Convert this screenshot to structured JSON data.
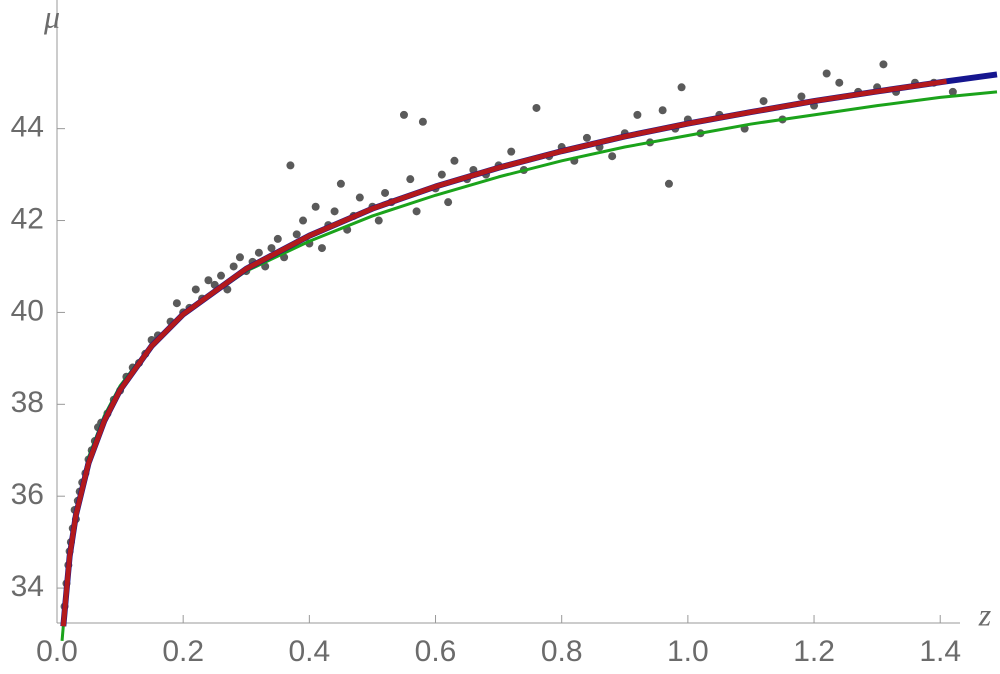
{
  "chart_data": {
    "type": "scatter",
    "x_label": "z",
    "y_label": "μ",
    "xlim": [
      0,
      1.49
    ],
    "ylim": [
      33.24,
      46.8
    ],
    "xticks": [
      {
        "value": 0,
        "label": "0.0"
      },
      0.2,
      0.4,
      0.6,
      0.8,
      {
        "value": 1,
        "label": "1.0"
      },
      1.2,
      1.4
    ],
    "yticks": [
      34,
      36,
      38,
      40,
      42,
      44
    ],
    "series": [
      {
        "type": "scatter",
        "color": "#5a5a5a",
        "x": [
          0.012,
          0.015,
          0.018,
          0.02,
          0.022,
          0.025,
          0.028,
          0.03,
          0.033,
          0.036,
          0.04,
          0.045,
          0.05,
          0.055,
          0.06,
          0.065,
          0.07,
          0.08,
          0.09,
          0.1,
          0.11,
          0.12,
          0.13,
          0.14,
          0.15,
          0.16,
          0.18,
          0.19,
          0.2,
          0.21,
          0.22,
          0.23,
          0.24,
          0.25,
          0.26,
          0.27,
          0.28,
          0.29,
          0.3,
          0.31,
          0.32,
          0.33,
          0.34,
          0.35,
          0.36,
          0.37,
          0.38,
          0.39,
          0.4,
          0.41,
          0.42,
          0.43,
          0.44,
          0.45,
          0.46,
          0.47,
          0.48,
          0.5,
          0.51,
          0.52,
          0.53,
          0.55,
          0.56,
          0.57,
          0.58,
          0.6,
          0.61,
          0.62,
          0.63,
          0.65,
          0.66,
          0.68,
          0.7,
          0.72,
          0.74,
          0.76,
          0.78,
          0.8,
          0.82,
          0.84,
          0.86,
          0.88,
          0.9,
          0.92,
          0.94,
          0.96,
          0.97,
          0.98,
          0.99,
          1.0,
          1.02,
          1.05,
          1.09,
          1.12,
          1.15,
          1.18,
          1.2,
          1.22,
          1.24,
          1.27,
          1.3,
          1.31,
          1.33,
          1.36,
          1.39,
          1.42
        ],
        "values": [
          33.6,
          34.1,
          34.5,
          34.8,
          35.0,
          35.3,
          35.7,
          35.5,
          35.9,
          36.1,
          36.3,
          36.5,
          36.8,
          37.0,
          37.2,
          37.5,
          37.6,
          37.8,
          38.1,
          38.3,
          38.6,
          38.8,
          38.9,
          39.1,
          39.4,
          39.5,
          39.8,
          40.2,
          40.0,
          40.1,
          40.5,
          40.3,
          40.7,
          40.6,
          40.8,
          40.5,
          41.0,
          41.2,
          40.9,
          41.1,
          41.3,
          41.0,
          41.4,
          41.6,
          41.2,
          43.2,
          41.7,
          42.0,
          41.5,
          42.3,
          41.4,
          41.9,
          42.2,
          42.8,
          41.8,
          42.1,
          42.5,
          42.3,
          42.0,
          42.6,
          42.4,
          44.3,
          42.9,
          42.2,
          44.15,
          42.7,
          43.0,
          42.4,
          43.3,
          42.9,
          43.1,
          43.0,
          43.2,
          43.5,
          43.1,
          44.45,
          43.4,
          43.6,
          43.3,
          43.8,
          43.6,
          43.4,
          43.9,
          44.3,
          43.7,
          44.4,
          42.8,
          44.0,
          44.9,
          44.2,
          43.9,
          44.3,
          44.0,
          44.6,
          44.2,
          44.7,
          44.5,
          45.2,
          45.0,
          44.8,
          44.9,
          45.4,
          44.8,
          45.0,
          45.0,
          44.8
        ]
      },
      {
        "type": "line",
        "color": "#1ba31b",
        "width": 3,
        "x": [
          0.008,
          0.02,
          0.03,
          0.05,
          0.075,
          0.1,
          0.15,
          0.2,
          0.3,
          0.4,
          0.5,
          0.6,
          0.7,
          0.8,
          0.9,
          1.0,
          1.1,
          1.2,
          1.3,
          1.4,
          1.49
        ],
        "values": [
          32.85,
          34.8,
          35.7,
          36.85,
          37.75,
          38.4,
          39.3,
          39.95,
          40.9,
          41.55,
          42.1,
          42.55,
          42.95,
          43.3,
          43.6,
          43.85,
          44.1,
          44.3,
          44.5,
          44.68,
          44.8
        ]
      },
      {
        "type": "line",
        "color": "#16168f",
        "width": 6,
        "x": [
          0.01,
          0.02,
          0.03,
          0.05,
          0.075,
          0.1,
          0.15,
          0.2,
          0.3,
          0.4,
          0.5,
          0.6,
          0.7,
          0.8,
          0.9,
          1.0,
          1.1,
          1.2,
          1.3,
          1.41,
          1.49
        ],
        "values": [
          33.17,
          34.69,
          35.59,
          36.72,
          37.64,
          38.31,
          39.27,
          39.96,
          40.95,
          41.67,
          42.26,
          42.74,
          43.15,
          43.51,
          43.83,
          44.11,
          44.36,
          44.6,
          44.81,
          45.03,
          45.18
        ]
      },
      {
        "type": "line",
        "color": "#b3191c",
        "width": 5,
        "x": [
          0.01,
          0.02,
          0.03,
          0.05,
          0.075,
          0.1,
          0.15,
          0.2,
          0.3,
          0.4,
          0.5,
          0.6,
          0.7,
          0.8,
          0.9,
          1.0,
          1.1,
          1.2,
          1.3,
          1.41
        ],
        "values": [
          33.17,
          34.69,
          35.59,
          36.72,
          37.64,
          38.31,
          39.27,
          39.96,
          40.95,
          41.67,
          42.26,
          42.74,
          43.15,
          43.51,
          43.83,
          44.11,
          44.36,
          44.6,
          44.81,
          45.03
        ]
      }
    ]
  }
}
